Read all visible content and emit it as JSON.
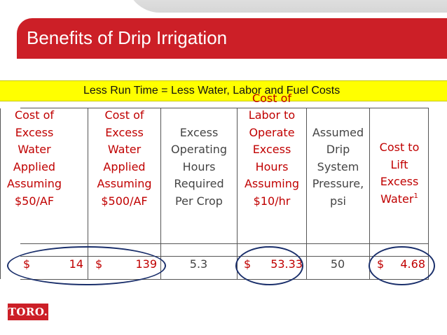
{
  "slide": {
    "title": "Benefits of Drip Irrigation",
    "banner": "Less Run Time = Less Water, Labor and Fuel Costs",
    "logo": "TORO."
  },
  "table": {
    "headers": [
      [
        "Cost of",
        "Excess",
        "Water",
        "Applied",
        "Assuming",
        "$50/AF"
      ],
      [
        "Cost of",
        "Excess",
        "Water",
        "Applied",
        "Assuming",
        "$500/AF"
      ],
      [
        "Excess",
        "Operating",
        "Hours",
        "Required",
        "Per Crop"
      ],
      [
        "Cost of",
        "Labor to",
        "Operate",
        "Excess",
        "Hours",
        "Assuming",
        "$10/hr"
      ],
      [
        "Assumed",
        "Drip",
        "System",
        "Pressure,",
        "psi"
      ],
      [
        "Cost to",
        "Lift",
        "Excess",
        "Water"
      ]
    ],
    "footnote_mark": "1",
    "values": [
      {
        "currency": "$",
        "amount": "14"
      },
      {
        "currency": "$",
        "amount": "139"
      },
      {
        "currency": "",
        "amount": "5.3"
      },
      {
        "currency": "$",
        "amount": "53.33"
      },
      {
        "currency": "",
        "amount": "50"
      },
      {
        "currency": "$",
        "amount": "4.68"
      }
    ]
  },
  "colors": {
    "title_bar": "#cc1f27",
    "banner": "#ffff00",
    "highlight_text": "#c00000",
    "ellipse": "#1a2f6b"
  }
}
